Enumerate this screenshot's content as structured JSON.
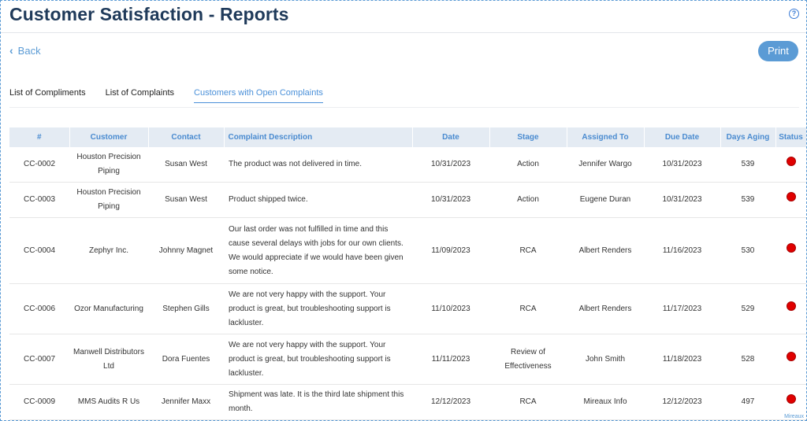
{
  "header": {
    "title": "Customer Satisfaction - Reports",
    "help_icon": "?"
  },
  "nav": {
    "back_label": "Back",
    "back_icon": "‹",
    "print_label": "Print"
  },
  "tabs": [
    {
      "label": "List of Compliments"
    },
    {
      "label": "List of Complaints"
    },
    {
      "label": "Customers with Open Complaints"
    }
  ],
  "table": {
    "columns": [
      "#",
      "Customer",
      "Contact",
      "Complaint Description",
      "Date",
      "Stage",
      "Assigned To",
      "Due Date",
      "Days Aging",
      "Status"
    ],
    "rows": [
      {
        "id": "CC-0002",
        "customer": "Houston Precision Piping",
        "contact": "Susan West",
        "desc": "The product was not delivered in time.",
        "date": "10/31/2023",
        "stage": "Action",
        "assigned": "Jennifer Wargo",
        "due": "10/31/2023",
        "aging": "539",
        "status": "red"
      },
      {
        "id": "CC-0003",
        "customer": "Houston Precision Piping",
        "contact": "Susan West",
        "desc": "Product shipped twice.",
        "date": "10/31/2023",
        "stage": "Action",
        "assigned": "Eugene Duran",
        "due": "10/31/2023",
        "aging": "539",
        "status": "red"
      },
      {
        "id": "CC-0004",
        "customer": "Zephyr Inc.",
        "contact": "Johnny Magnet",
        "desc": "Our last order was not fulfilled in time and this cause several delays with jobs for our own clients. We would appreciate if we would have been given some notice.",
        "date": "11/09/2023",
        "stage": "RCA",
        "assigned": "Albert Renders",
        "due": "11/16/2023",
        "aging": "530",
        "status": "red"
      },
      {
        "id": "CC-0006",
        "customer": "Ozor Manufacturing",
        "contact": "Stephen Gills",
        "desc": "We are not very happy with the support. Your product is great, but troubleshooting support is lackluster.",
        "date": "11/10/2023",
        "stage": "RCA",
        "assigned": "Albert Renders",
        "due": "11/17/2023",
        "aging": "529",
        "status": "red"
      },
      {
        "id": "CC-0007",
        "customer": "Manwell Distributors Ltd",
        "contact": "Dora Fuentes",
        "desc": "We are not very happy with the support. Your product is great, but troubleshooting support is lackluster.",
        "date": "11/11/2023",
        "stage": "Review of Effectiveness",
        "assigned": "John Smith",
        "due": "11/18/2023",
        "aging": "528",
        "status": "red"
      },
      {
        "id": "CC-0009",
        "customer": "MMS Audits R Us",
        "contact": "Jennifer Maxx",
        "desc": "Shipment was late. It is the third late shipment this month.",
        "date": "12/12/2023",
        "stage": "RCA",
        "assigned": "Mireaux Info",
        "due": "12/12/2023",
        "aging": "497",
        "status": "red"
      }
    ]
  },
  "watermark": "Mireaux",
  "colors": {
    "accent": "#5b9bd5",
    "status_red": "#e00000",
    "header_bg": "#e4ebf3"
  }
}
